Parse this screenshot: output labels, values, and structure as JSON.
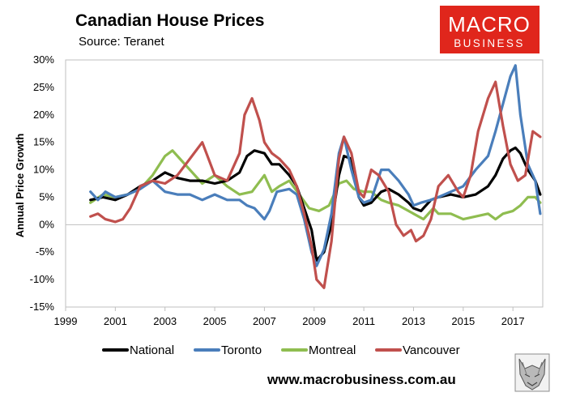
{
  "logo": {
    "line1": "MACRO",
    "line2": "BUSINESS",
    "bg": "#e0261c"
  },
  "footer": {
    "url": "www.macrobusiness.com.au"
  },
  "wolf": {
    "icon": "wolf-head-icon"
  },
  "chart_data": {
    "type": "line",
    "title": "Canadian House Prices",
    "subtitle": "Source: Teranet",
    "xlabel": "",
    "ylabel": "Annual Price Growth",
    "xlim": [
      1999,
      2018.2
    ],
    "ylim": [
      -15,
      30
    ],
    "x_ticks": [
      1999,
      2001,
      2003,
      2005,
      2007,
      2009,
      2011,
      2013,
      2015,
      2017
    ],
    "x_tick_labels": [
      "1999",
      "2001",
      "2003",
      "2005",
      "2007",
      "2009",
      "2011",
      "2013",
      "2015",
      "2017"
    ],
    "y_ticks": [
      -15,
      -10,
      -5,
      0,
      5,
      10,
      15,
      20,
      25,
      30
    ],
    "y_tick_labels": [
      "-15%",
      "-10%",
      "-5%",
      "0%",
      "5%",
      "10%",
      "15%",
      "20%",
      "25%",
      "30%"
    ],
    "legend_position": "bottom",
    "series": [
      {
        "name": "National",
        "color": "#000000",
        "x": [
          2000,
          2000.5,
          2001,
          2001.5,
          2002,
          2002.5,
          2003,
          2003.5,
          2004,
          2004.5,
          2005,
          2005.5,
          2006,
          2006.3,
          2006.6,
          2007,
          2007.3,
          2007.6,
          2008,
          2008.3,
          2008.6,
          2008.9,
          2009.1,
          2009.4,
          2009.7,
          2010,
          2010.2,
          2010.5,
          2010.8,
          2011,
          2011.3,
          2011.7,
          2012,
          2012.4,
          2012.8,
          2013,
          2013.3,
          2013.7,
          2014,
          2014.5,
          2015,
          2015.5,
          2016,
          2016.3,
          2016.6,
          2016.9,
          2017.1,
          2017.3,
          2017.6,
          2017.9,
          2018.1
        ],
        "y": [
          4.5,
          5.0,
          4.5,
          5.5,
          7.0,
          8.0,
          9.5,
          8.5,
          8.0,
          8.0,
          7.5,
          8.0,
          9.5,
          12.5,
          13.5,
          13.0,
          11.0,
          11.0,
          9.0,
          7.0,
          3.0,
          -1.0,
          -6.5,
          -5.0,
          0.0,
          9.0,
          12.5,
          12.0,
          5.0,
          3.5,
          4.0,
          6.0,
          6.5,
          5.5,
          4.0,
          3.0,
          2.5,
          4.5,
          5.0,
          5.5,
          5.0,
          5.5,
          7.0,
          9.0,
          12.0,
          13.5,
          14.0,
          13.0,
          10.0,
          8.0,
          5.5
        ]
      },
      {
        "name": "Toronto",
        "color": "#4a7ebb",
        "x": [
          2000,
          2000.3,
          2000.6,
          2001,
          2001.5,
          2002,
          2002.5,
          2003,
          2003.5,
          2004,
          2004.5,
          2005,
          2005.5,
          2006,
          2006.3,
          2006.6,
          2007,
          2007.2,
          2007.5,
          2008,
          2008.3,
          2008.6,
          2008.9,
          2009.1,
          2009.4,
          2009.7,
          2010,
          2010.2,
          2010.5,
          2010.8,
          2011,
          2011.3,
          2011.7,
          2012,
          2012.4,
          2012.8,
          2013,
          2013.3,
          2013.7,
          2014,
          2014.5,
          2015,
          2015.5,
          2016,
          2016.3,
          2016.6,
          2016.9,
          2017.1,
          2017.3,
          2017.6,
          2017.9,
          2018.1
        ],
        "y": [
          6.0,
          4.5,
          6.0,
          5.0,
          5.5,
          6.5,
          8.0,
          6.0,
          5.5,
          5.5,
          4.5,
          5.5,
          4.5,
          4.5,
          3.5,
          3.0,
          1.0,
          2.5,
          6.0,
          6.5,
          5.5,
          1.0,
          -5.0,
          -7.5,
          -4.5,
          2.0,
          13.0,
          16.0,
          10.0,
          5.0,
          4.0,
          4.5,
          10.0,
          10.0,
          8.0,
          5.5,
          3.5,
          4.0,
          4.5,
          5.0,
          6.0,
          7.0,
          10.0,
          12.5,
          17.0,
          22.0,
          27.0,
          29.0,
          20.0,
          11.0,
          8.0,
          2.0
        ]
      },
      {
        "name": "Montreal",
        "color": "#8fbd50",
        "x": [
          2000,
          2000.5,
          2001,
          2001.5,
          2002,
          2002.5,
          2003,
          2003.3,
          2003.6,
          2004,
          2004.5,
          2005,
          2005.5,
          2006,
          2006.5,
          2007,
          2007.3,
          2007.6,
          2008,
          2008.4,
          2008.8,
          2009.2,
          2009.6,
          2010,
          2010.3,
          2010.6,
          2011,
          2011.3,
          2011.7,
          2012,
          2012.4,
          2012.8,
          2013,
          2013.4,
          2013.8,
          2014,
          2014.5,
          2015,
          2015.5,
          2016,
          2016.3,
          2016.6,
          2017,
          2017.3,
          2017.6,
          2017.9,
          2018.1
        ],
        "y": [
          4.0,
          5.5,
          5.0,
          5.5,
          6.5,
          9.0,
          12.5,
          13.5,
          12.0,
          10.0,
          7.5,
          9.0,
          7.0,
          5.5,
          6.0,
          9.0,
          6.0,
          7.0,
          8.0,
          5.5,
          3.0,
          2.5,
          3.5,
          7.5,
          8.0,
          6.5,
          6.0,
          6.0,
          4.5,
          4.0,
          3.5,
          2.5,
          2.0,
          1.0,
          3.0,
          2.0,
          2.0,
          1.0,
          1.5,
          2.0,
          1.0,
          2.0,
          2.5,
          3.5,
          5.0,
          5.0,
          4.0
        ]
      },
      {
        "name": "Vancouver",
        "color": "#c0504d",
        "x": [
          2000,
          2000.3,
          2000.6,
          2001,
          2001.3,
          2001.6,
          2002,
          2002.5,
          2003,
          2003.5,
          2004,
          2004.5,
          2005,
          2005.5,
          2006,
          2006.2,
          2006.5,
          2006.8,
          2007,
          2007.3,
          2007.6,
          2008,
          2008.3,
          2008.6,
          2008.9,
          2009.1,
          2009.4,
          2009.7,
          2010,
          2010.2,
          2010.5,
          2010.8,
          2011,
          2011.3,
          2011.6,
          2012,
          2012.3,
          2012.6,
          2012.9,
          2013.1,
          2013.4,
          2013.7,
          2014,
          2014.4,
          2014.8,
          2015,
          2015.3,
          2015.6,
          2016,
          2016.3,
          2016.6,
          2016.9,
          2017.2,
          2017.5,
          2017.8,
          2018.1
        ],
        "y": [
          1.5,
          2.0,
          1.0,
          0.5,
          1.0,
          3.0,
          7.0,
          8.0,
          7.5,
          9.0,
          12.0,
          15.0,
          9.0,
          8.0,
          13.0,
          20.0,
          23.0,
          19.0,
          15.0,
          13.0,
          12.0,
          10.0,
          7.0,
          2.0,
          -4.0,
          -10.0,
          -11.5,
          -3.0,
          12.0,
          16.0,
          13.0,
          6.0,
          5.0,
          10.0,
          9.0,
          6.0,
          0.0,
          -2.0,
          -1.0,
          -3.0,
          -2.0,
          1.0,
          7.0,
          9.0,
          6.0,
          5.0,
          9.0,
          17.0,
          23.0,
          26.0,
          18.0,
          11.0,
          8.0,
          9.0,
          17.0,
          16.0
        ]
      }
    ]
  }
}
